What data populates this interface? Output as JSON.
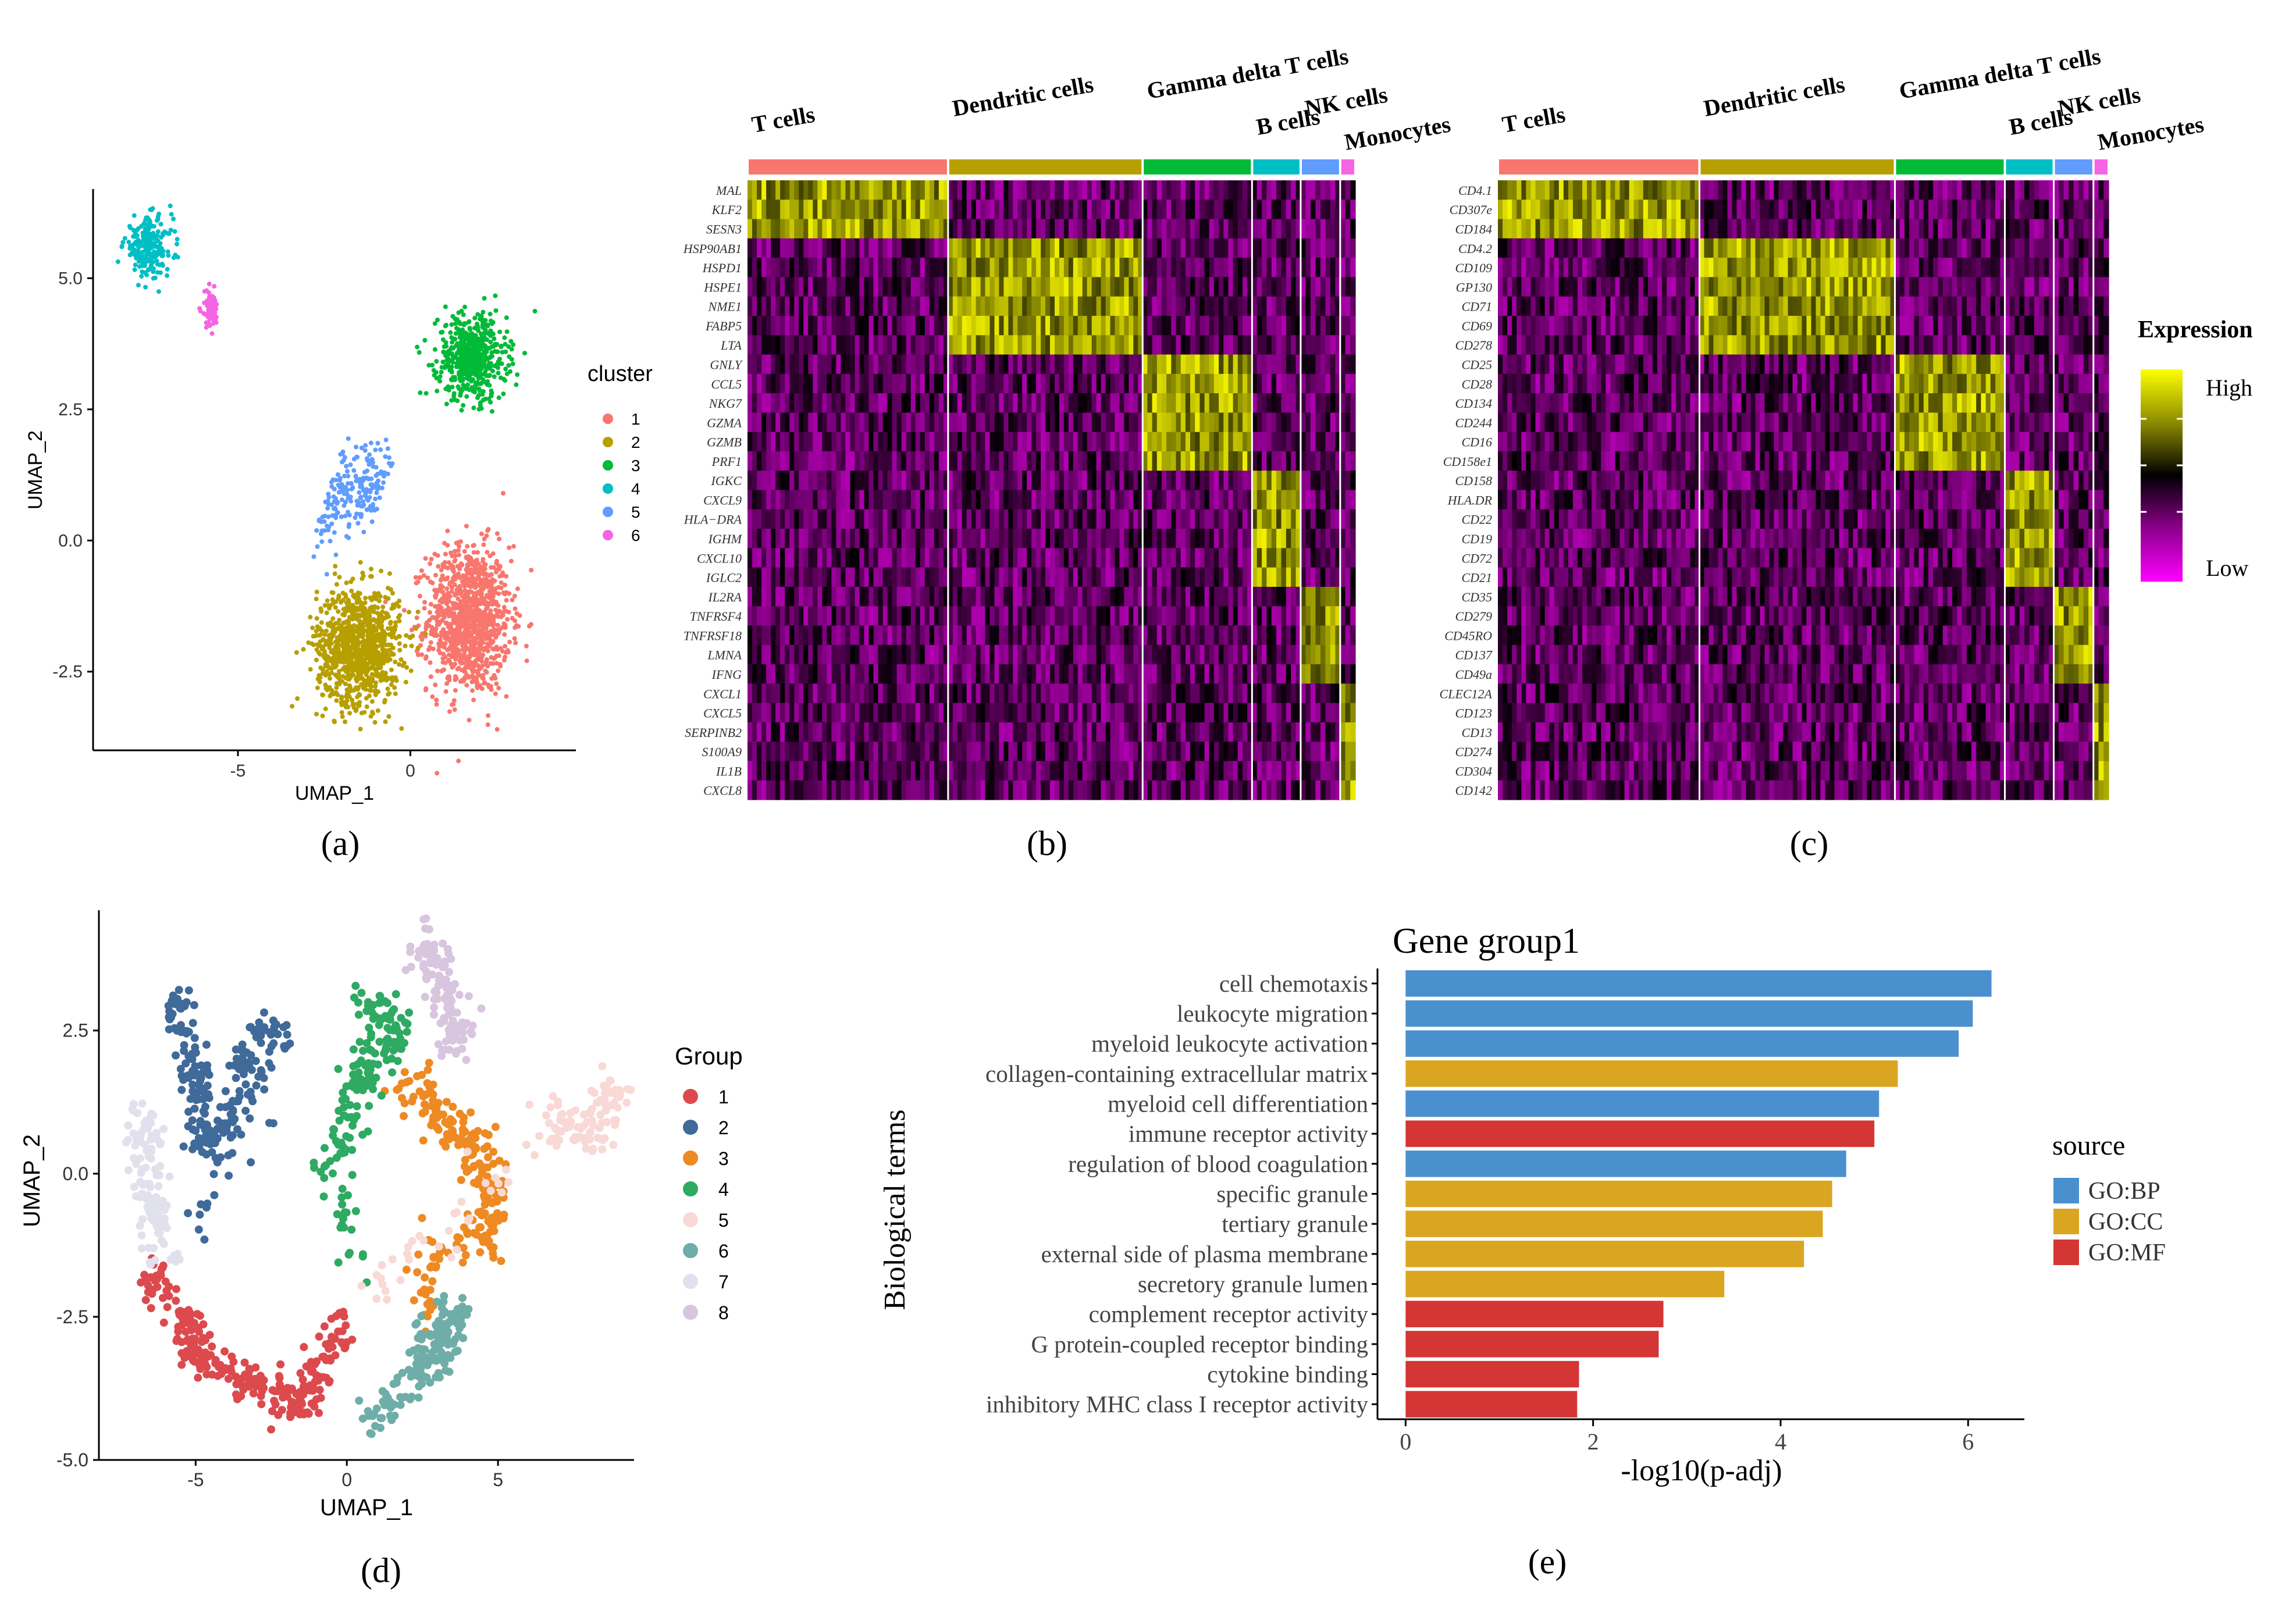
{
  "panel_labels": {
    "a": "(a)",
    "b": "(b)",
    "c": "(c)",
    "d": "(d)",
    "e": "(e)"
  },
  "colors": {
    "cluster": [
      "#F8766D",
      "#B79F00",
      "#00BA38",
      "#00BFC4",
      "#619CFF",
      "#F564E3"
    ],
    "group": [
      "#DC4A4E",
      "#3F6A99",
      "#EE8A23",
      "#2EAA62",
      "#F8D9D6",
      "#6FADA8",
      "#E1E1EE",
      "#D8C5DE"
    ],
    "source": [
      "#4A90CF",
      "#DAA520",
      "#D33634"
    ]
  },
  "chart_data": [
    {
      "type": "scatter",
      "panel": "a",
      "xlabel": "UMAP_1",
      "ylabel": "UMAP_2",
      "xlim": [
        -9.2,
        4.8
      ],
      "ylim": [
        -4.0,
        6.7
      ],
      "xticks": [
        -5,
        0
      ],
      "yticks": [
        -2.5,
        0.0,
        2.5,
        5.0
      ],
      "xtick_labels": [
        "-5",
        "0"
      ],
      "ytick_labels": [
        "-2.5",
        "0.0",
        "2.5",
        "5.0"
      ],
      "legend_title": "cluster",
      "legend_entries": [
        "1",
        "2",
        "3",
        "4",
        "5",
        "6"
      ],
      "clusters": [
        {
          "name": "1",
          "center": [
            1.7,
            -1.5
          ],
          "spread": [
            1.2,
            1.4
          ],
          "n": 1100
        },
        {
          "name": "2",
          "center": [
            -1.5,
            -2.0
          ],
          "spread": [
            1.2,
            1.1
          ],
          "n": 1000
        },
        {
          "name": "3",
          "center": [
            1.8,
            3.5
          ],
          "spread": [
            1.0,
            0.8
          ],
          "n": 550
        },
        {
          "name": "4",
          "center": [
            -7.6,
            5.6
          ],
          "spread": [
            0.7,
            0.55
          ],
          "n": 230
        },
        {
          "name": "5",
          "center": [
            -1.6,
            0.9
          ],
          "spread": [
            0.55,
            0.9
          ],
          "n": 200
        },
        {
          "name": "6",
          "center": [
            -5.8,
            4.4
          ],
          "spread": [
            0.25,
            0.35
          ],
          "n": 70
        }
      ]
    },
    {
      "type": "heatmap",
      "panel": "b",
      "columns": [
        "T cells",
        "Dendritic cells",
        "Gamma delta T cells",
        "B cells",
        "NK cells",
        "Monocytes"
      ],
      "column_fractions": [
        0.33,
        0.32,
        0.18,
        0.08,
        0.065,
        0.015
      ],
      "rows": [
        "MAL",
        "KLF2",
        "SESN3",
        "HSP90AB1",
        "HSPD1",
        "HSPE1",
        "NME1",
        "FABP5",
        "LTA",
        "GNLY",
        "CCL5",
        "NKG7",
        "GZMA",
        "GZMB",
        "PRF1",
        "IGKC",
        "CXCL9",
        "HLA−DRA",
        "IGHM",
        "CXCL10",
        "IGLC2",
        "IL2RA",
        "TNFRSF4",
        "TNFRSF18",
        "LMNA",
        "IFNG",
        "CXCL1",
        "CXCL5",
        "SERPINB2",
        "S100A9",
        "IL1B",
        "CXCL8"
      ],
      "high_groups": [
        0,
        0,
        0,
        1,
        1,
        1,
        1,
        1,
        1,
        2,
        2,
        2,
        2,
        2,
        2,
        3,
        3,
        3,
        3,
        3,
        3,
        4,
        4,
        4,
        4,
        4,
        5,
        5,
        5,
        5,
        5,
        5
      ]
    },
    {
      "type": "heatmap",
      "panel": "c",
      "columns": [
        "T cells",
        "Dendritic cells",
        "Gamma delta T cells",
        "B cells",
        "NK cells",
        "Monocytes"
      ],
      "column_fractions": [
        0.33,
        0.32,
        0.18,
        0.08,
        0.065,
        0.015
      ],
      "rows": [
        "CD4.1",
        "CD307e",
        "CD184",
        "CD4.2",
        "CD109",
        "GP130",
        "CD71",
        "CD69",
        "CD278",
        "CD25",
        "CD28",
        "CD134",
        "CD244",
        "CD16",
        "CD158e1",
        "CD158",
        "HLA.DR",
        "CD22",
        "CD19",
        "CD72",
        "CD21",
        "CD35",
        "CD279",
        "CD45RO",
        "CD137",
        "CD49a",
        "CLEC12A",
        "CD123",
        "CD13",
        "CD274",
        "CD304",
        "CD142"
      ],
      "high_groups": [
        0,
        0,
        0,
        1,
        1,
        1,
        1,
        1,
        1,
        2,
        2,
        2,
        2,
        2,
        2,
        3,
        3,
        3,
        3,
        3,
        3,
        4,
        4,
        4,
        4,
        4,
        5,
        5,
        5,
        5,
        5,
        5
      ],
      "legend_title": "Expression",
      "legend_high": "High",
      "legend_low": "Low"
    },
    {
      "type": "scatter",
      "panel": "d",
      "xlabel": "UMAP_1",
      "ylabel": "UMAP_2",
      "xlim": [
        -8.2,
        9.5
      ],
      "ylim": [
        -5.0,
        4.6
      ],
      "xticks": [
        -5,
        0,
        5
      ],
      "yticks": [
        -5.0,
        -2.5,
        0.0,
        2.5
      ],
      "xtick_labels": [
        "-5",
        "0",
        "5"
      ],
      "ytick_labels": [
        "-5.0",
        "-2.5",
        "0.0",
        "2.5"
      ],
      "legend_title": "Group",
      "legend_entries": [
        "1",
        "2",
        "3",
        "4",
        "5",
        "6",
        "7",
        "8"
      ]
    },
    {
      "type": "bar",
      "panel": "e",
      "orientation": "horizontal",
      "title": "Gene group1",
      "xlabel": "-log10(p-adj)",
      "ylabel": "Biological terms",
      "xlim": [
        -0.3,
        6.6
      ],
      "xticks": [
        0,
        2,
        4,
        6
      ],
      "xtick_labels": [
        "0",
        "2",
        "4",
        "6"
      ],
      "categories": [
        "cell chemotaxis",
        "leukocyte migration",
        "myeloid leukocyte activation",
        "collagen-containing extracellular matrix",
        "myeloid cell differentiation",
        "immune receptor activity",
        "regulation of blood coagulation",
        "specific granule",
        "tertiary granule",
        "external side of plasma membrane",
        "secretory granule lumen",
        "complement receptor activity",
        "G protein-coupled receptor binding",
        "cytokine binding",
        "inhibitory MHC class I receptor activity"
      ],
      "values": [
        6.25,
        6.05,
        5.9,
        5.25,
        5.05,
        5.0,
        4.7,
        4.55,
        4.45,
        4.25,
        3.4,
        2.75,
        2.7,
        1.85,
        1.83
      ],
      "source": [
        "GO:BP",
        "GO:BP",
        "GO:BP",
        "GO:CC",
        "GO:BP",
        "GO:MF",
        "GO:BP",
        "GO:CC",
        "GO:CC",
        "GO:CC",
        "GO:CC",
        "GO:MF",
        "GO:MF",
        "GO:MF",
        "GO:MF"
      ],
      "legend_title": "source",
      "legend_entries": [
        "GO:BP",
        "GO:CC",
        "GO:MF"
      ]
    }
  ]
}
